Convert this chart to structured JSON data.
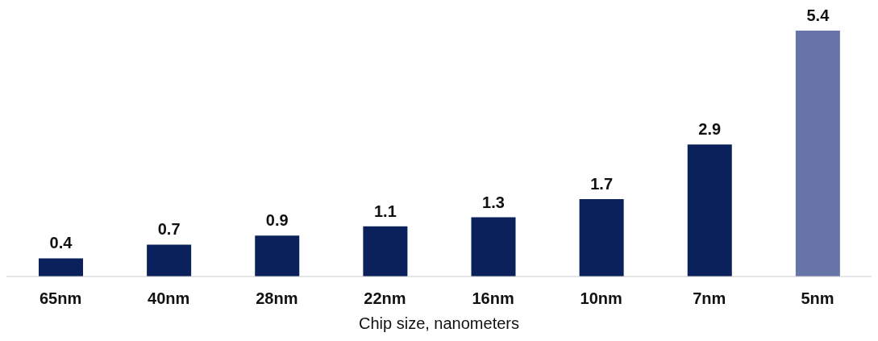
{
  "chart_data": {
    "type": "bar",
    "xlabel": "Chip size, nanometers",
    "categories": [
      "65nm",
      "40nm",
      "28nm",
      "22nm",
      "16nm",
      "10nm",
      "7nm",
      "5nm"
    ],
    "values": [
      0.4,
      0.7,
      0.9,
      1.1,
      1.3,
      1.7,
      2.9,
      5.4
    ],
    "colors": [
      "#0a215c",
      "#0a215c",
      "#0a215c",
      "#0a215c",
      "#0a215c",
      "#0a215c",
      "#0a215c",
      "#6674a8"
    ],
    "data_labels": true
  }
}
